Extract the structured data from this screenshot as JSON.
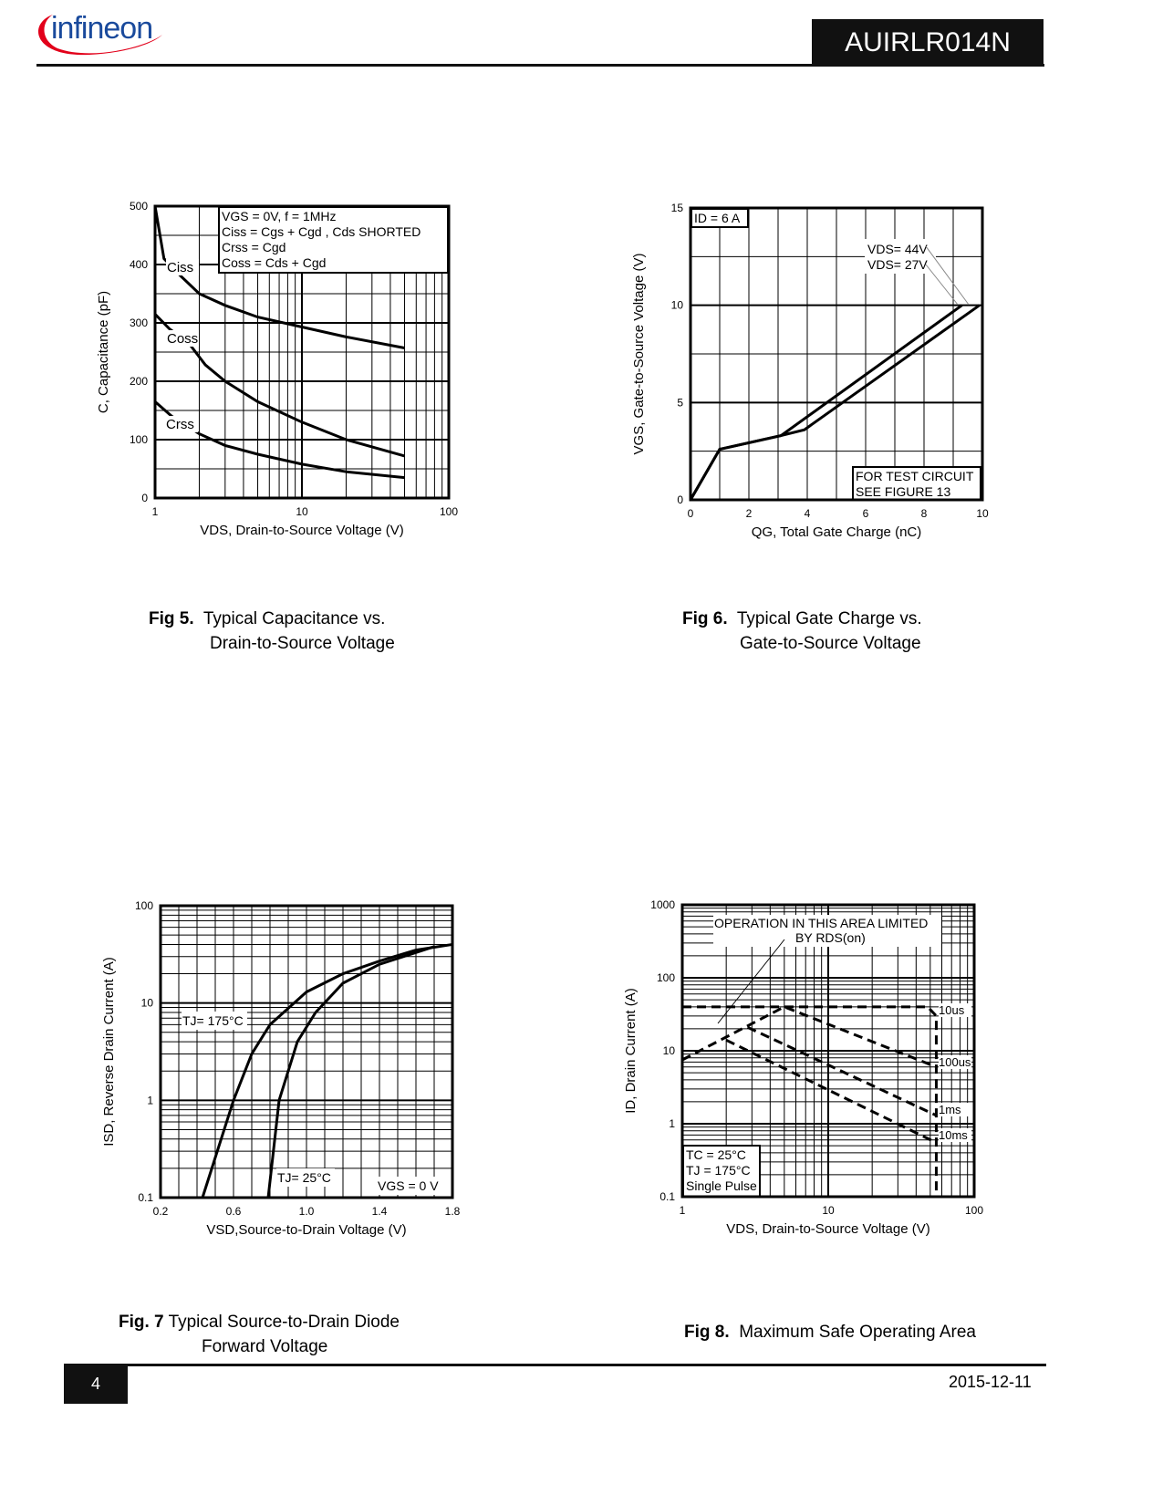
{
  "header": {
    "brand": "infineon",
    "part_number": "AUIRLR014N"
  },
  "footer": {
    "page": "4",
    "date": "2015-12-11"
  },
  "captions": [
    {
      "num": "Fig 5.",
      "line1": "Typical Capacitance vs.",
      "line2": "Drain-to-Source Voltage"
    },
    {
      "num": "Fig 6.",
      "line1": "Typical Gate Charge vs.",
      "line2": "Gate-to-Source Voltage"
    },
    {
      "num": "Fig. 7",
      "line1": "Typical Source-to-Drain Diode",
      "line2": "Forward Voltage"
    },
    {
      "num": "Fig 8.",
      "line1": "Maximum Safe Operating Area",
      "line2": ""
    }
  ],
  "chart_data": [
    {
      "type": "line",
      "title": "Typical Capacitance vs. Drain-to-Source Voltage",
      "xlabel": "VDS, Drain-to-Source Voltage (V)",
      "ylabel": "C, Capacitance (pF)",
      "xscale": "log",
      "xlim": [
        1,
        100
      ],
      "ylim": [
        0,
        500
      ],
      "xticks": [
        "1",
        "10",
        "100"
      ],
      "yticks": [
        "0",
        "100",
        "200",
        "300",
        "400",
        "500"
      ],
      "annotations": [
        "VGS = 0V,      f = 1MHz",
        "Ciss = Cgs + Cgd ,  Cds SHORTED",
        "Crss = Cgd",
        "Coss = Cds + Cgd"
      ],
      "series": [
        {
          "name": "Ciss",
          "x": [
            1,
            1.15,
            1.5,
            2,
            3,
            5,
            10,
            20,
            50
          ],
          "y": [
            500,
            410,
            380,
            350,
            330,
            310,
            293,
            276,
            257
          ]
        },
        {
          "name": "Coss",
          "x": [
            1,
            1.25,
            1.7,
            2.2,
            3,
            5,
            10,
            20,
            50
          ],
          "y": [
            315,
            290,
            265,
            228,
            200,
            165,
            130,
            100,
            72
          ]
        },
        {
          "name": "Crss",
          "x": [
            1,
            1.3,
            2,
            3,
            5,
            10,
            20,
            50
          ],
          "y": [
            165,
            140,
            110,
            90,
            75,
            58,
            45,
            35
          ]
        }
      ]
    },
    {
      "type": "line",
      "title": "Typical Gate Charge vs. Gate-to-Source Voltage",
      "xlabel": "QG, Total Gate Charge (nC)",
      "ylabel": "VGS, Gate-to-Source Voltage (V)",
      "xlim": [
        0,
        10
      ],
      "ylim": [
        0,
        15
      ],
      "xticks": [
        "0",
        "2",
        "4",
        "6",
        "8",
        "10"
      ],
      "yticks": [
        "0",
        "5",
        "10",
        "15"
      ],
      "annotations": [
        "ID = 6 A",
        "FOR TEST CIRCUIT",
        "SEE FIGURE  13"
      ],
      "series": [
        {
          "name": "VDS= 27V",
          "x": [
            0,
            1,
            3.1,
            9.3
          ],
          "y": [
            0,
            2.6,
            3.3,
            10
          ]
        },
        {
          "name": "VDS= 44V",
          "x": [
            0,
            1,
            3.1,
            3.9,
            9.9
          ],
          "y": [
            0,
            2.6,
            3.3,
            3.6,
            10
          ]
        }
      ]
    },
    {
      "type": "line",
      "title": "Typical Source-to-Drain Diode Forward Voltage",
      "xlabel": "VSD,Source-to-Drain Voltage (V)",
      "ylabel": "ISD, Reverse Drain Current (A)",
      "yscale": "log",
      "xlim": [
        0.2,
        1.8
      ],
      "ylim": [
        0.1,
        100
      ],
      "xticks": [
        "0.2",
        "0.6",
        "1.0",
        "1.4",
        "1.8"
      ],
      "yticks": [
        "0.1",
        "1",
        "10",
        "100"
      ],
      "annotations": [
        "VGS = 0 V"
      ],
      "series": [
        {
          "name": "TJ= 175°C",
          "x": [
            0.43,
            0.6,
            0.7,
            0.8,
            1.0,
            1.2,
            1.4,
            1.6,
            1.8
          ],
          "y": [
            0.1,
            1,
            3,
            6,
            13,
            20,
            27,
            35,
            40
          ]
        },
        {
          "name": "TJ= 25°C",
          "x": [
            0.79,
            0.85,
            0.95,
            1.05,
            1.2,
            1.4,
            1.6,
            1.7
          ],
          "y": [
            0.1,
            1,
            4,
            8,
            16,
            25,
            33,
            38
          ]
        }
      ]
    },
    {
      "type": "line",
      "title": "Maximum Safe Operating Area",
      "xlabel": "VDS, Drain-to-Source Voltage (V)",
      "ylabel": "ID, Drain Current (A)",
      "xscale": "log",
      "yscale": "log",
      "xlim": [
        1,
        100
      ],
      "ylim": [
        0.1,
        1000
      ],
      "xticks": [
        "1",
        "10",
        "100"
      ],
      "yticks": [
        "0.1",
        "1",
        "10",
        "100",
        "1000"
      ],
      "annotations": [
        "OPERATION IN THIS AREA LIMITED",
        "BY RDS(on)",
        "TC = 25°C",
        "TJ = 175°C",
        "Single Pulse"
      ],
      "series": [
        {
          "name": "10us",
          "x": [
            1,
            48,
            55,
            55
          ],
          "y": [
            40,
            40,
            30,
            0.1
          ]
        },
        {
          "name": "100us",
          "x": [
            1,
            5,
            55
          ],
          "y": [
            7.5,
            40,
            6
          ]
        },
        {
          "name": "1ms",
          "x": [
            2.8,
            55
          ],
          "y": [
            21,
            1.3
          ]
        },
        {
          "name": "10ms",
          "x": [
            2,
            55
          ],
          "y": [
            14,
            0.55
          ]
        }
      ]
    }
  ]
}
